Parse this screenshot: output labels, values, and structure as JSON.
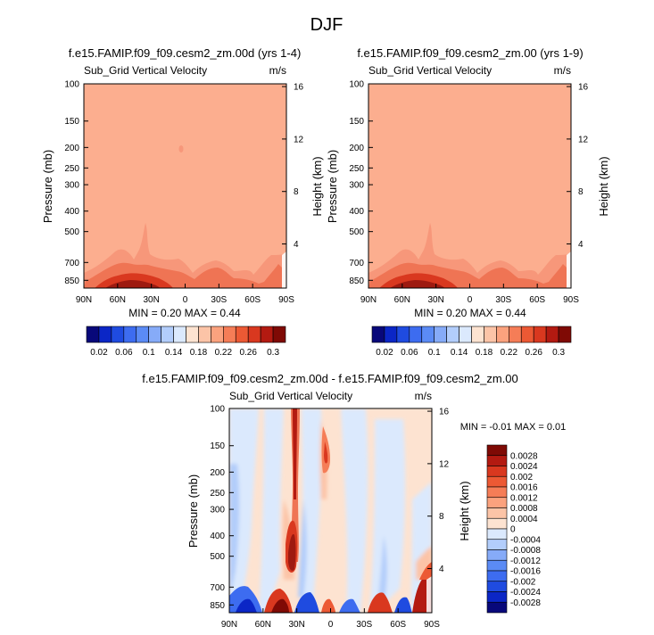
{
  "figure": {
    "title": "DJF"
  },
  "colorbar_top": {
    "labels": [
      "0.02",
      "0.06",
      "0.1",
      "0.14",
      "0.18",
      "0.22",
      "0.26",
      "0.3"
    ],
    "colors": [
      "#08087a",
      "#0b26c6",
      "#1f4be0",
      "#3d6cf0",
      "#5b8bf5",
      "#86abf8",
      "#b2cdfb",
      "#dbe9fd",
      "#fde3d1",
      "#fcc4a7",
      "#fba27e",
      "#f57d57",
      "#ec5934",
      "#d9381f",
      "#b31a11",
      "#7f0a05"
    ]
  },
  "colorbar_diff": {
    "labels": [
      "0.0028",
      "0.0024",
      "0.002",
      "0.0016",
      "0.0012",
      "0.0008",
      "0.0004",
      "0",
      "-0.0004",
      "-0.0008",
      "-0.0012",
      "-0.0016",
      "-0.002",
      "-0.0024",
      "-0.0028"
    ],
    "colors": [
      "#7f0a05",
      "#b31a11",
      "#d9381f",
      "#ec5934",
      "#f57d57",
      "#fba27e",
      "#fcc4a7",
      "#fde3d1",
      "#dbe9fd",
      "#b2cdfb",
      "#86abf8",
      "#5b8bf5",
      "#3d6cf0",
      "#1f4be0",
      "#0b26c6",
      "#08087a"
    ]
  },
  "chart_data": [
    {
      "type": "heatmap",
      "title": "f.e15.FAMIP.f09_f09.cesm2_zm.00d (yrs 1-4)",
      "subtitle": "Sub_Grid Vertical Velocity",
      "units": "m/s",
      "ylabel": "Pressure (mb)",
      "y2label": "Height (km)",
      "x_ticks": [
        "90N",
        "60N",
        "30N",
        "0",
        "30S",
        "60S",
        "90S"
      ],
      "y_ticks": [
        "100",
        "150",
        "200",
        "250",
        "300",
        "400",
        "500",
        "700",
        "850"
      ],
      "y2_ticks": [
        "16",
        "12",
        "8",
        "4"
      ],
      "stats": "MIN =  0.20  MAX =  0.44",
      "min": 0.2,
      "max": 0.44,
      "background_level": 0.22
    },
    {
      "type": "heatmap",
      "title": "f.e15.FAMIP.f09_f09.cesm2_zm.00 (yrs 1-9)",
      "subtitle": "Sub_Grid Vertical Velocity",
      "units": "m/s",
      "ylabel": "Pressure (mb)",
      "y2label": "Height (km)",
      "x_ticks": [
        "90N",
        "60N",
        "30N",
        "0",
        "30S",
        "60S",
        "90S"
      ],
      "y_ticks": [
        "100",
        "150",
        "200",
        "250",
        "300",
        "400",
        "500",
        "700",
        "850"
      ],
      "y2_ticks": [
        "16",
        "12",
        "8",
        "4"
      ],
      "stats": "MIN =  0.20  MAX =  0.44",
      "min": 0.2,
      "max": 0.44,
      "background_level": 0.22
    },
    {
      "type": "heatmap",
      "title": "f.e15.FAMIP.f09_f09.cesm2_zm.00d - f.e15.FAMIP.f09_f09.cesm2_zm.00",
      "subtitle": "Sub_Grid Vertical Velocity",
      "units": "m/s",
      "ylabel": "Pressure (mb)",
      "y2label": "Height (km)",
      "x_ticks": [
        "90N",
        "60N",
        "30N",
        "0",
        "30S",
        "60S",
        "90S"
      ],
      "y_ticks": [
        "100",
        "150",
        "200",
        "250",
        "300",
        "400",
        "500",
        "700",
        "850"
      ],
      "y2_ticks": [
        "16",
        "12",
        "8",
        "4"
      ],
      "stats": "MIN = -0.01  MAX =  0.01",
      "min": -0.01,
      "max": 0.01
    }
  ]
}
